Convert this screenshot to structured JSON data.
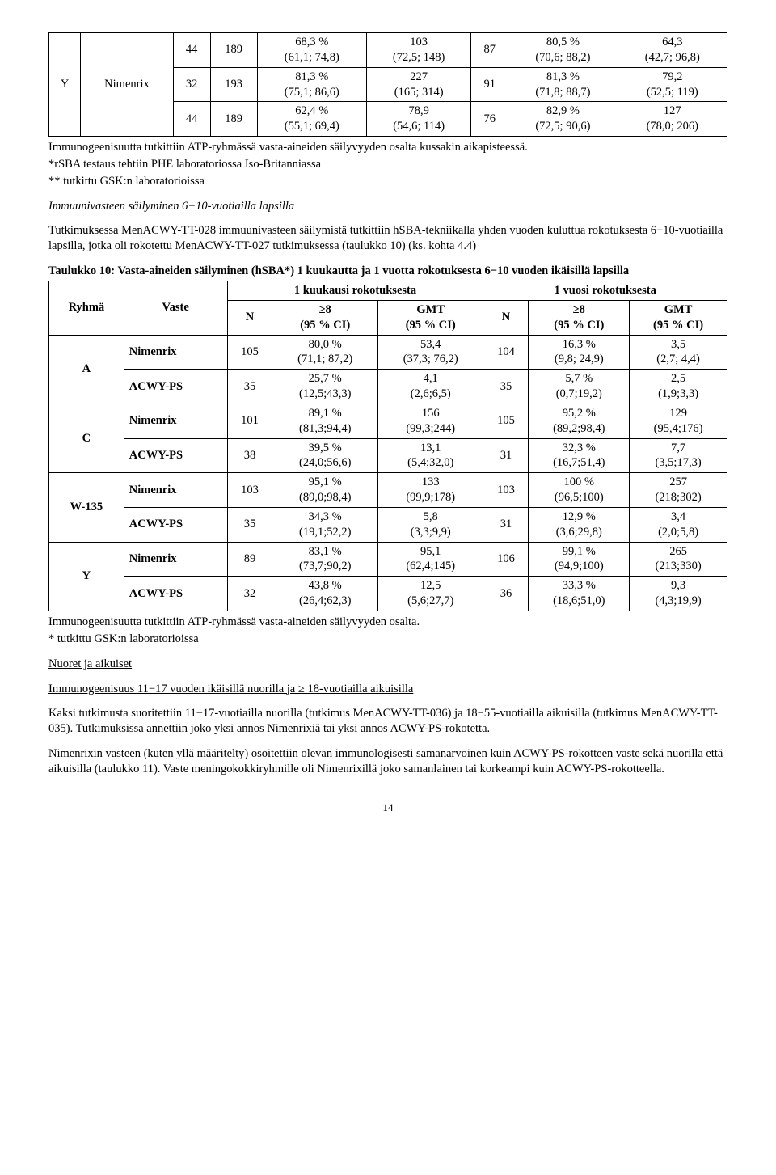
{
  "table1": {
    "col0_group": "Y",
    "col1_group": "Nimenrix",
    "rows": [
      {
        "n1": "44",
        "n2": "189",
        "c1a": "68,3 %",
        "c1b": "(61,1; 74,8)",
        "c2a": "103",
        "c2b": "(72,5; 148)",
        "n3": "87",
        "c3a": "80,5 %",
        "c3b": "(70,6; 88,2)",
        "c4a": "64,3",
        "c4b": "(42,7; 96,8)"
      },
      {
        "n1": "32",
        "n2": "193",
        "c1a": "81,3 %",
        "c1b": "(75,1; 86,6)",
        "c2a": "227",
        "c2b": "(165; 314)",
        "n3": "91",
        "c3a": "81,3 %",
        "c3b": "(71,8; 88,7)",
        "c4a": "79,2",
        "c4b": "(52,5; 119)"
      },
      {
        "n1": "44",
        "n2": "189",
        "c1a": "62,4 %",
        "c1b": "(55,1; 69,4)",
        "c2a": "78,9",
        "c2b": "(54,6; 114)",
        "n3": "76",
        "c3a": "82,9 %",
        "c3b": "(72,5; 90,6)",
        "c4a": "127",
        "c4b": "(78,0; 206)"
      }
    ]
  },
  "para1": "Immunogeenisuutta tutkittiin ATP-ryhmässä vasta-aineiden säilyvyyden osalta kussakin aikapisteessä.",
  "para2": "*rSBA testaus tehtiin PHE laboratoriossa Iso-Britanniassa",
  "para3": "** tutkittu GSK:n laboratorioissa",
  "heading1": "Immuunivasteen säilyminen 6−10-vuotiailla lapsilla",
  "para4": "Tutkimuksessa MenACWY-TT-028 immuunivasteen säilymistä tutkittiin hSBA-tekniikalla yhden vuoden kuluttua rokotuksesta 6−10-vuotiailla lapsilla, jotka oli rokotettu MenACWY-TT-027 tutkimuksessa (taulukko 10) (ks. kohta 4.4)",
  "table2title1": "Taulukko 10: Vasta-aineiden säilyminen (hSBA*) 1 kuukautta ja 1 vuotta rokotuksesta 6−10 vuoden ikäisillä lapsilla",
  "t2": {
    "h_ryhma": "Ryhmä",
    "h_vaste": "Vaste",
    "h_1kk": "1 kuukausi rokotuksesta",
    "h_1v": "1 vuosi rokotuksesta",
    "h_N": "N",
    "h_ge8": "≥8",
    "h_ci": "(95 % CI)",
    "h_gmt": "GMT",
    "groups": [
      {
        "g": "A",
        "rows": [
          {
            "v": "Nimenrix",
            "n1": "105",
            "a": "80,0 %",
            "b": "(71,1; 87,2)",
            "c": "53,4",
            "d": "(37,3; 76,2)",
            "n2": "104",
            "e": "16,3 %",
            "f": "(9,8; 24,9)",
            "g2": "3,5",
            "h": "(2,7; 4,4)"
          },
          {
            "v": "ACWY-PS",
            "n1": "35",
            "a": "25,7 %",
            "b": "(12,5;43,3)",
            "c": "4,1",
            "d": "(2,6;6,5)",
            "n2": "35",
            "e": "5,7 %",
            "f": "(0,7;19,2)",
            "g2": "2,5",
            "h": "(1,9;3,3)"
          }
        ]
      },
      {
        "g": "C",
        "rows": [
          {
            "v": "Nimenrix",
            "n1": "101",
            "a": "89,1 %",
            "b": "(81,3;94,4)",
            "c": "156",
            "d": "(99,3;244)",
            "n2": "105",
            "e": "95,2 %",
            "f": "(89,2;98,4)",
            "g2": "129",
            "h": "(95,4;176)"
          },
          {
            "v": "ACWY-PS",
            "n1": "38",
            "a": "39,5 %",
            "b": "(24,0;56,6)",
            "c": "13,1",
            "d": "(5,4;32,0)",
            "n2": "31",
            "e": "32,3 %",
            "f": "(16,7;51,4)",
            "g2": "7,7",
            "h": "(3,5;17,3)"
          }
        ]
      },
      {
        "g": "W-135",
        "rows": [
          {
            "v": "Nimenrix",
            "n1": "103",
            "a": "95,1 %",
            "b": "(89,0;98,4)",
            "c": "133",
            "d": "(99,9;178)",
            "n2": "103",
            "e": "100 %",
            "f": "(96,5;100)",
            "g2": "257",
            "h": "(218;302)"
          },
          {
            "v": "ACWY-PS",
            "n1": "35",
            "a": "34,3 %",
            "b": "(19,1;52,2)",
            "c": "5,8",
            "d": "(3,3;9,9)",
            "n2": "31",
            "e": "12,9 %",
            "f": "(3,6;29,8)",
            "g2": "3,4",
            "h": "(2,0;5,8)"
          }
        ]
      },
      {
        "g": "Y",
        "rows": [
          {
            "v": "Nimenrix",
            "n1": "89",
            "a": "83,1 %",
            "b": "(73,7;90,2)",
            "c": "95,1",
            "d": "(62,4;145)",
            "n2": "106",
            "e": "99,1 %",
            "f": "(94,9;100)",
            "g2": "265",
            "h": "(213;330)"
          },
          {
            "v": "ACWY-PS",
            "n1": "32",
            "a": "43,8 %",
            "b": "(26,4;62,3)",
            "c": "12,5",
            "d": "(5,6;27,7)",
            "n2": "36",
            "e": "33,3 %",
            "f": "(18,6;51,0)",
            "g2": "9,3",
            "h": "(4,3;19,9)"
          }
        ]
      }
    ]
  },
  "para5": "Immunogeenisuutta tutkittiin ATP-ryhmässä vasta-aineiden säilyvyyden osalta.",
  "para6": "* tutkittu GSK:n laboratorioissa",
  "heading2": "Nuoret ja aikuiset",
  "heading3": "Immunogeenisuus 11−17 vuoden ikäisillä nuorilla ja ≥ 18-vuotiailla aikuisilla",
  "para7": "Kaksi tutkimusta suoritettiin 11−17-vuotiailla nuorilla (tutkimus MenACWY-TT-036) ja 18−55-vuotiailla aikuisilla (tutkimus MenACWY-TT-035). Tutkimuksissa annettiin joko yksi annos Nimenrixiä tai yksi annos ACWY-PS-rokotetta.",
  "para8": "Nimenrixin vasteen (kuten yllä määritelty) osoitettiin olevan immunologisesti samanarvoinen kuin ACWY-PS-rokotteen vaste sekä nuorilla että aikuisilla (taulukko 11). Vaste meningokokkiryhmille oli Nimenrixillä joko samanlainen tai korkeampi kuin ACWY-PS-rokotteella.",
  "pagenum": "14"
}
